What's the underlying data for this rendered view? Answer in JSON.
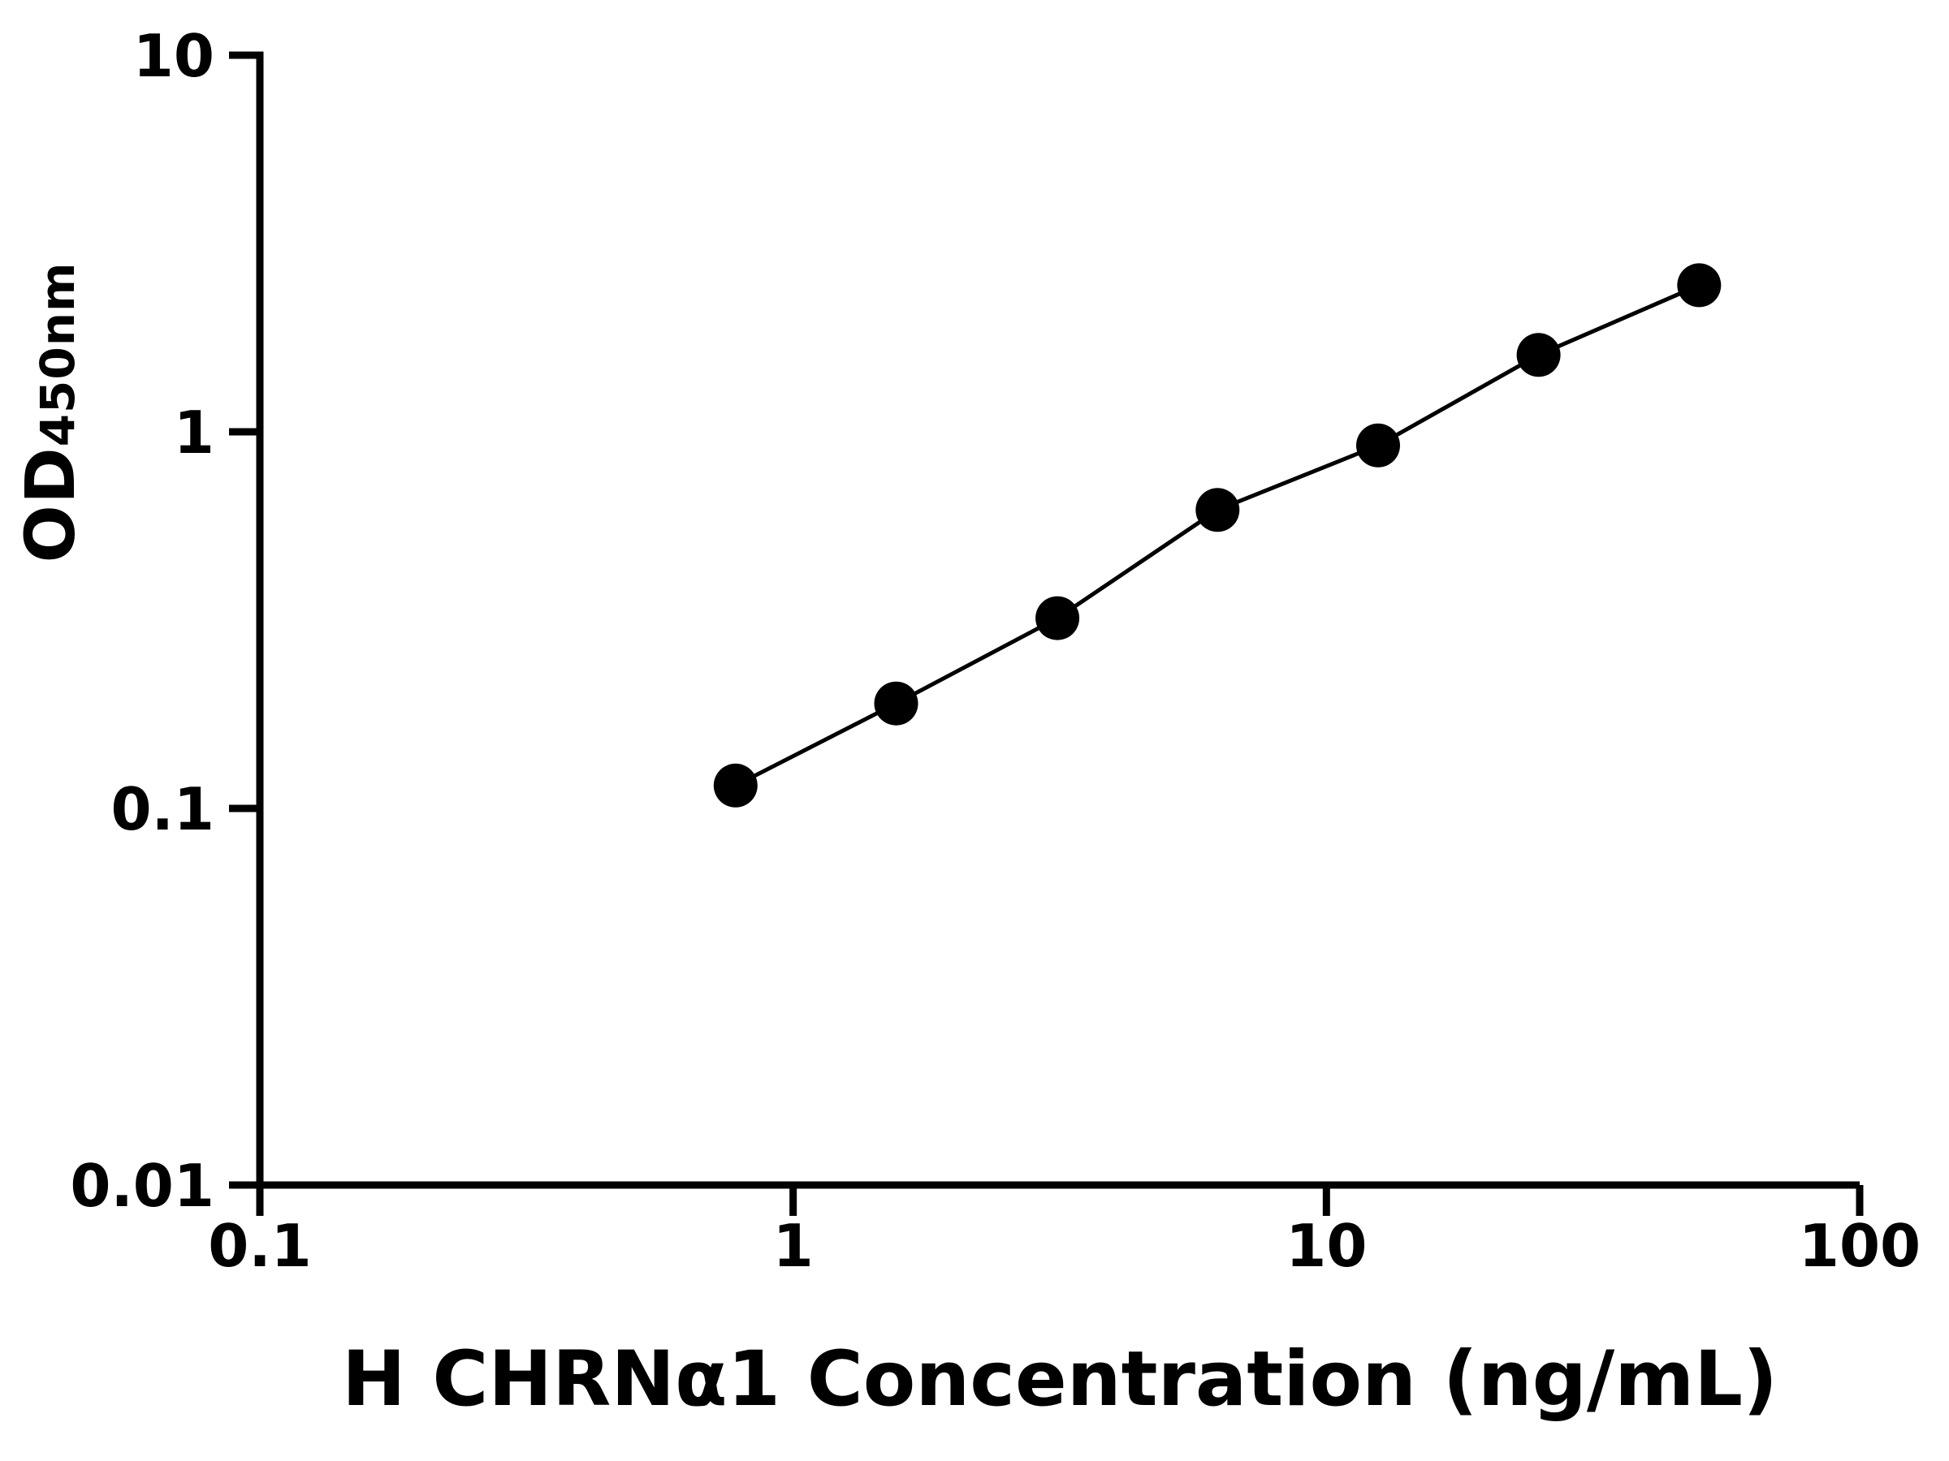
{
  "chart_data": {
    "type": "line",
    "title": "",
    "xlabel": "H CHRNα1 Concentration (ng/mL)",
    "ylabel": "OD450nm",
    "ylabel_main": "OD",
    "ylabel_sub": "450nm",
    "xscale": "log",
    "yscale": "log",
    "xlim": [
      0.1,
      100
    ],
    "ylim": [
      0.01,
      10
    ],
    "xticks": {
      "values": [
        0.1,
        1,
        10,
        100
      ],
      "labels": [
        "0.1",
        "1",
        "10",
        "100"
      ]
    },
    "yticks": {
      "values": [
        0.01,
        0.1,
        1,
        10
      ],
      "labels": [
        "0.01",
        "0.1",
        "1",
        "10"
      ]
    },
    "x": [
      0.78,
      1.56,
      3.13,
      6.25,
      12.5,
      25,
      50
    ],
    "y": [
      0.115,
      0.19,
      0.32,
      0.62,
      0.92,
      1.6,
      2.45
    ],
    "marker": "circle",
    "grid": false,
    "legend": "none"
  },
  "style": {
    "background": "#ffffff",
    "axis_color": "#000000",
    "line_color": "#000000",
    "point_color": "#000000",
    "text_color": "#000000"
  }
}
